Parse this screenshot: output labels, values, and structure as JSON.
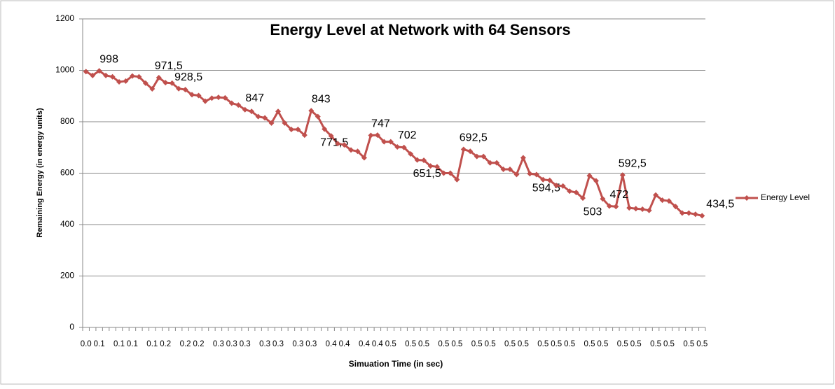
{
  "chart_data": {
    "type": "line",
    "title": "Energy Level at Network with 64 Sensors",
    "x_label": "Simuation Time  (in sec)",
    "y_label": "Remaining Energy  (in energy units)",
    "categories": [
      "0.0",
      null,
      "0.1",
      null,
      null,
      "0.1",
      null,
      "0.1",
      null,
      null,
      "0.1",
      null,
      "0.2",
      null,
      null,
      "0.2",
      null,
      "0.2",
      null,
      null,
      "0.3",
      null,
      "0.3",
      null,
      "0.3",
      null,
      null,
      "0.3",
      null,
      "0.3",
      null,
      null,
      "0.3",
      null,
      "0.3",
      null,
      null,
      "0.4",
      null,
      "0.4",
      null,
      null,
      "0.4",
      null,
      "0.4",
      null,
      "0.5",
      null,
      null,
      "0.5",
      null,
      "0.5",
      null,
      null,
      "0.5",
      null,
      "0.5",
      null,
      null,
      "0.5",
      null,
      "0.5",
      null,
      null,
      "0.5",
      null,
      "0.5",
      null,
      null,
      "0.5",
      null,
      "0.5",
      null,
      "0.5",
      null,
      null,
      "0.5",
      null,
      "0.5",
      null,
      null,
      "0.5",
      null,
      "0.5",
      null,
      null,
      "0.5",
      null,
      "0.5",
      null,
      null,
      "0.5",
      null,
      "0.5"
    ],
    "series": [
      {
        "name": "Energy Level",
        "color": "#c0504d",
        "values": [
          995,
          980,
          998,
          980,
          975,
          955,
          958,
          978,
          975,
          950,
          928,
          971.5,
          952,
          950,
          928.5,
          925,
          905,
          902,
          880,
          892,
          895,
          893,
          872,
          865,
          847,
          840,
          820,
          815,
          795,
          840,
          795,
          770,
          770,
          748,
          843,
          820,
          771.5,
          745,
          715,
          710,
          690,
          685,
          660,
          747,
          748,
          722,
          722,
          702,
          700,
          675,
          651.5,
          650,
          628,
          625,
          600,
          600,
          575,
          692.5,
          685,
          665,
          665,
          640,
          640,
          615,
          615,
          595,
          660,
          598,
          594.5,
          575,
          572,
          552,
          550,
          530,
          525,
          503,
          590,
          570,
          500,
          472,
          470,
          592.5,
          465,
          462,
          460,
          455,
          515,
          495,
          492,
          470,
          445,
          445,
          440,
          434.5
        ],
        "value_labels": [
          null,
          null,
          "998",
          null,
          null,
          null,
          null,
          null,
          null,
          null,
          null,
          "971,5",
          null,
          null,
          "928,5",
          null,
          null,
          null,
          null,
          null,
          null,
          null,
          null,
          null,
          "847",
          null,
          null,
          null,
          null,
          null,
          null,
          null,
          null,
          null,
          "843",
          null,
          "771,5",
          null,
          null,
          null,
          null,
          null,
          null,
          "747",
          null,
          null,
          null,
          "702",
          null,
          null,
          "651,5",
          null,
          null,
          null,
          null,
          null,
          null,
          "692,5",
          null,
          null,
          null,
          null,
          null,
          null,
          null,
          null,
          null,
          null,
          "594,5",
          null,
          null,
          null,
          null,
          null,
          null,
          "503",
          null,
          null,
          null,
          "472",
          null,
          "592,5",
          null,
          null,
          null,
          null,
          null,
          null,
          null,
          null,
          null,
          null,
          null,
          "434,5"
        ]
      }
    ],
    "ylim": [
      0,
      1200
    ],
    "yticks": [
      0,
      200,
      400,
      600,
      800,
      1000,
      1200
    ],
    "grid": true,
    "legend": "right"
  }
}
